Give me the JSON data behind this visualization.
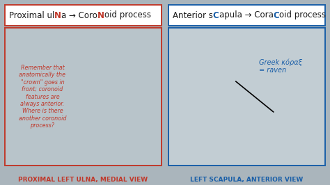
{
  "bg_color": "#aab5bc",
  "fig_w": 4.74,
  "fig_h": 2.66,
  "dpi": 100,
  "left_panel": {
    "box_color": "#c0392b",
    "title_bg": "#ffffff",
    "content_bg": "#b8c4ca",
    "title_parts": [
      [
        "Proximal ul",
        "#1a1a1a",
        false
      ],
      [
        "N",
        "#c0392b",
        true
      ],
      [
        "a → Coro",
        "#1a1a1a",
        false
      ],
      [
        "N",
        "#c0392b",
        true
      ],
      [
        "oid process",
        "#1a1a1a",
        false
      ]
    ],
    "note_text": "Remember that\nanatomically the\n\"crown\" goes in\nfront; coronoid\nfeatures are\nalways anterior.\nWhere is there\nanother coronoid\nprocess?",
    "note_color": "#c0392b",
    "bottom_label": "PROXIMAL LEFT ULNA, MEDIAL VIEW",
    "bottom_label_color": "#c0392b"
  },
  "right_panel": {
    "box_color": "#1a5fa8",
    "title_bg": "#ffffff",
    "content_bg": "#c2cdd3",
    "title_parts": [
      [
        "Anterior s",
        "#1a1a1a",
        false
      ],
      [
        "C",
        "#1a5fa8",
        true
      ],
      [
        "apula → Cora",
        "#1a1a1a",
        false
      ],
      [
        "C",
        "#1a5fa8",
        true
      ],
      [
        "oid process",
        "#1a1a1a",
        false
      ]
    ],
    "greek_text": "Greek κόραξ\n= raven",
    "greek_color": "#1a5fa8",
    "bottom_label": "LEFT SCAPULA, ANTERIOR VIEW",
    "bottom_label_color": "#1a5fa8"
  },
  "title_fontsize": 8.5,
  "note_fontsize": 5.8,
  "label_fontsize": 6.5,
  "greek_fontsize": 7.0
}
